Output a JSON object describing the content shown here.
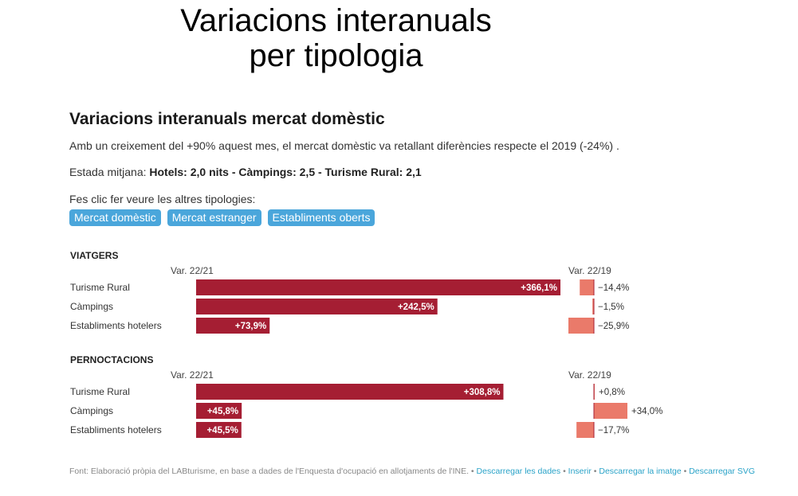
{
  "header": {
    "title_line1": "Variacions interanuals",
    "title_line2": "per tipologia"
  },
  "intro": {
    "subtitle": "Variacions interanuals mercat domèstic",
    "description": "Amb un creixement del +90% aquest mes, el mercat domèstic va retallant diferències respecte el 2019 (-24%) .",
    "stay_label": "Estada mitjana: ",
    "stay_values": "Hotels: 2,0 nits - Càmpings: 2,5 - Turisme Rural: 2,1",
    "click_hint": "Fes clic fer veure les altres tipologies:"
  },
  "buttons": [
    {
      "label": "Mercat domèstic"
    },
    {
      "label": "Mercat estranger"
    },
    {
      "label": "Establiments oberts"
    }
  ],
  "colors": {
    "main_bar": "#a51e33",
    "secondary_bar": "#ea7a6a"
  },
  "chart_data": {
    "type": "bar",
    "col_left_label": "Var. 22/21",
    "col_right_label": "Var. 22/19",
    "groups": [
      {
        "title": "VIATGERS",
        "rows": [
          {
            "category": "Turisme Rural",
            "var_22_21": 366.1,
            "var_22_21_label": "+366,1%",
            "var_22_19": -14.4,
            "var_22_19_label": "−14,4%"
          },
          {
            "category": "Càmpings",
            "var_22_21": 242.5,
            "var_22_21_label": "+242,5%",
            "var_22_19": -1.5,
            "var_22_19_label": "−1,5%"
          },
          {
            "category": "Establiments hotelers",
            "var_22_21": 73.9,
            "var_22_21_label": "+73,9%",
            "var_22_19": -25.9,
            "var_22_19_label": "−25,9%"
          }
        ]
      },
      {
        "title": "PERNOCTACIONS",
        "rows": [
          {
            "category": "Turisme Rural",
            "var_22_21": 308.8,
            "var_22_21_label": "+308,8%",
            "var_22_19": 0.8,
            "var_22_19_label": "+0,8%"
          },
          {
            "category": "Càmpings",
            "var_22_21": 45.8,
            "var_22_21_label": "+45,8%",
            "var_22_19": 34.0,
            "var_22_19_label": "+34,0%"
          },
          {
            "category": "Establiments hotelers",
            "var_22_21": 45.5,
            "var_22_21_label": "+45,5%",
            "var_22_19": -17.7,
            "var_22_19_label": "−17,7%"
          }
        ]
      }
    ]
  },
  "footer": {
    "source_text": "Font: Elaboració pròpia del LABturisme, en base a dades de l'Enquesta d'ocupació en allotjaments de l'INE.",
    "sep": " • ",
    "links": [
      "Descarregar les dades",
      "Inserir",
      "Descarregar la imatge",
      "Descarregar SVG"
    ]
  }
}
